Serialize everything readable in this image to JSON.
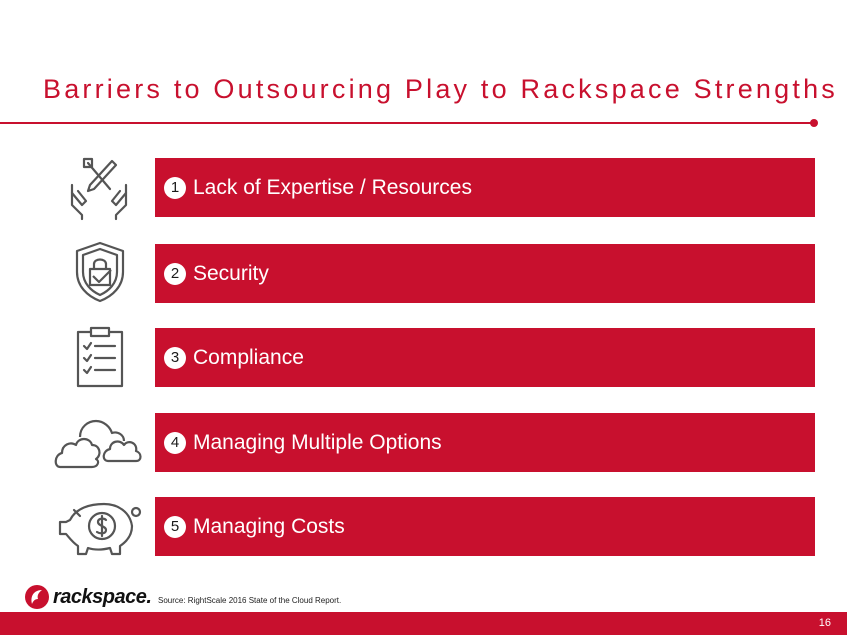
{
  "slide": {
    "title": "Barriers to Outsourcing Play to Rackspace Strengths",
    "items": [
      {
        "number": "1",
        "label": "Lack of Expertise / Resources",
        "icon": "hands-tools-icon"
      },
      {
        "number": "2",
        "label": "Security",
        "icon": "shield-lock-icon"
      },
      {
        "number": "3",
        "label": "Compliance",
        "icon": "clipboard-checklist-icon"
      },
      {
        "number": "4",
        "label": "Managing Multiple Options",
        "icon": "clouds-icon"
      },
      {
        "number": "5",
        "label": "Managing Costs",
        "icon": "piggy-bank-icon"
      }
    ],
    "logo_text": "rackspace.",
    "source": "Source: RightScale 2016 State of the Cloud Report.",
    "page_number": "16"
  },
  "colors": {
    "accent": "#c8102e",
    "icon_gray": "#555555"
  }
}
